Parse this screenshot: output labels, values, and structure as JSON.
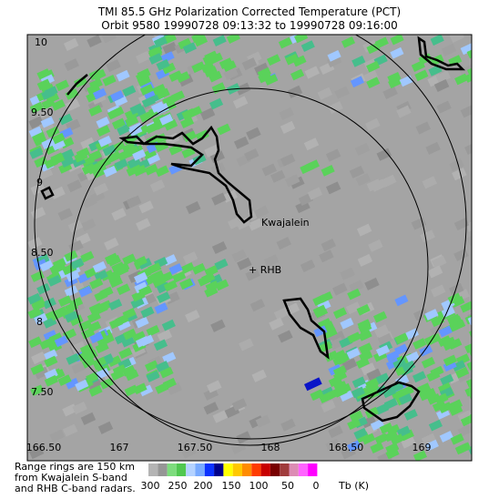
{
  "title": [
    "TMI 85.5 GHz Polarization Corrected Temperature (PCT)",
    "Orbit 9580 19990728 09:13:32 to 19990728 09:16:00"
  ],
  "lat_labels": [
    "10",
    "9.50",
    "9",
    "8.50",
    "8",
    "7.50"
  ],
  "lon_labels": [
    "166.50",
    "167",
    "167.50",
    "168",
    "168.50",
    "169"
  ],
  "places": [
    "Kwajalein",
    "+ RHB"
  ],
  "note": [
    "Range rings are 150 km",
    "from Kwajalein S-band",
    "and RHB C-band radars."
  ],
  "colorbar": {
    "labels": [
      "300",
      "250",
      "200",
      "150",
      "100",
      "50",
      "0"
    ],
    "unit": "Tb (K)"
  }
}
